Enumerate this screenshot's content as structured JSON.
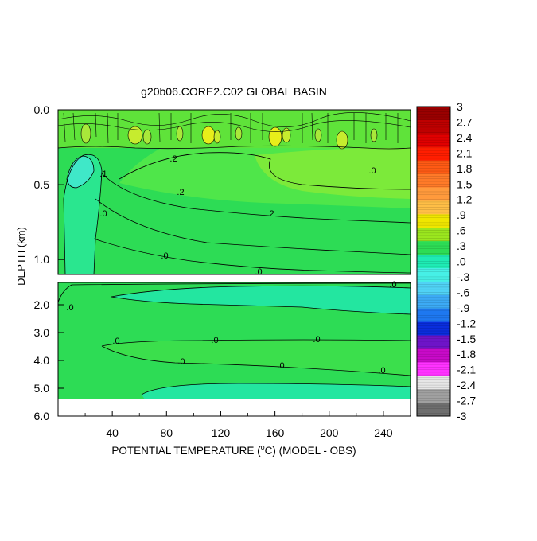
{
  "chart_data": {
    "type": "heatmap",
    "title": "g20b06.CORE2.C02 GLOBAL BASIN",
    "xlabel": "POTENTIAL TEMPERATURE (°C) (MODEL - OBS)",
    "xlabel_parts": {
      "before": "POTENTIAL TEMPERATURE (",
      "sup": "o",
      "after": "C) (MODEL - OBS)"
    },
    "ylabel": "DEPTH (km)",
    "xlim": [
      0,
      260
    ],
    "x_ticks": [
      "40",
      "80",
      "120",
      "160",
      "200",
      "240"
    ],
    "top_panel": {
      "ylim": [
        0.0,
        1.1
      ],
      "y_ticks": [
        "0.0",
        "0.5",
        "1.0"
      ],
      "contour_labels": [
        ".2",
        ".2",
        ".2",
        ".0",
        ".0",
        ".1",
        ".0",
        ".0"
      ]
    },
    "bottom_panel": {
      "ylim": [
        1.2,
        6.0
      ],
      "y_ticks": [
        "2.0",
        "3.0",
        "4.0",
        "5.0",
        "6.0"
      ],
      "contour_labels": [
        ".0",
        ".0",
        ".0",
        ".0",
        ".0",
        ".0",
        ".0",
        ".0"
      ]
    },
    "colorbar": {
      "labels": [
        "3",
        "2.7",
        "2.4",
        "2.1",
        "1.8",
        "1.5",
        "1.2",
        ".9",
        ".6",
        ".3",
        ".0",
        "-.3",
        "-.6",
        "-.9",
        "-1.2",
        "-1.5",
        "-1.8",
        "-2.1",
        "-2.4",
        "-2.7",
        "-3"
      ],
      "colors": [
        "#9a0000",
        "#be0000",
        "#e00000",
        "#ff1e00",
        "#ff5a14",
        "#ff7a28",
        "#ff9a3c",
        "#ffbe46",
        "#f0e600",
        "#9be61e",
        "#2ddc55",
        "#1eebb4",
        "#46f0e6",
        "#50d2f5",
        "#3caaf5",
        "#1e78f0",
        "#0a2ddc",
        "#6e14c8",
        "#c80ac8",
        "#ff32ff",
        "#e6e6e6",
        "#a0a0a0",
        "#6e6e6e"
      ]
    }
  }
}
